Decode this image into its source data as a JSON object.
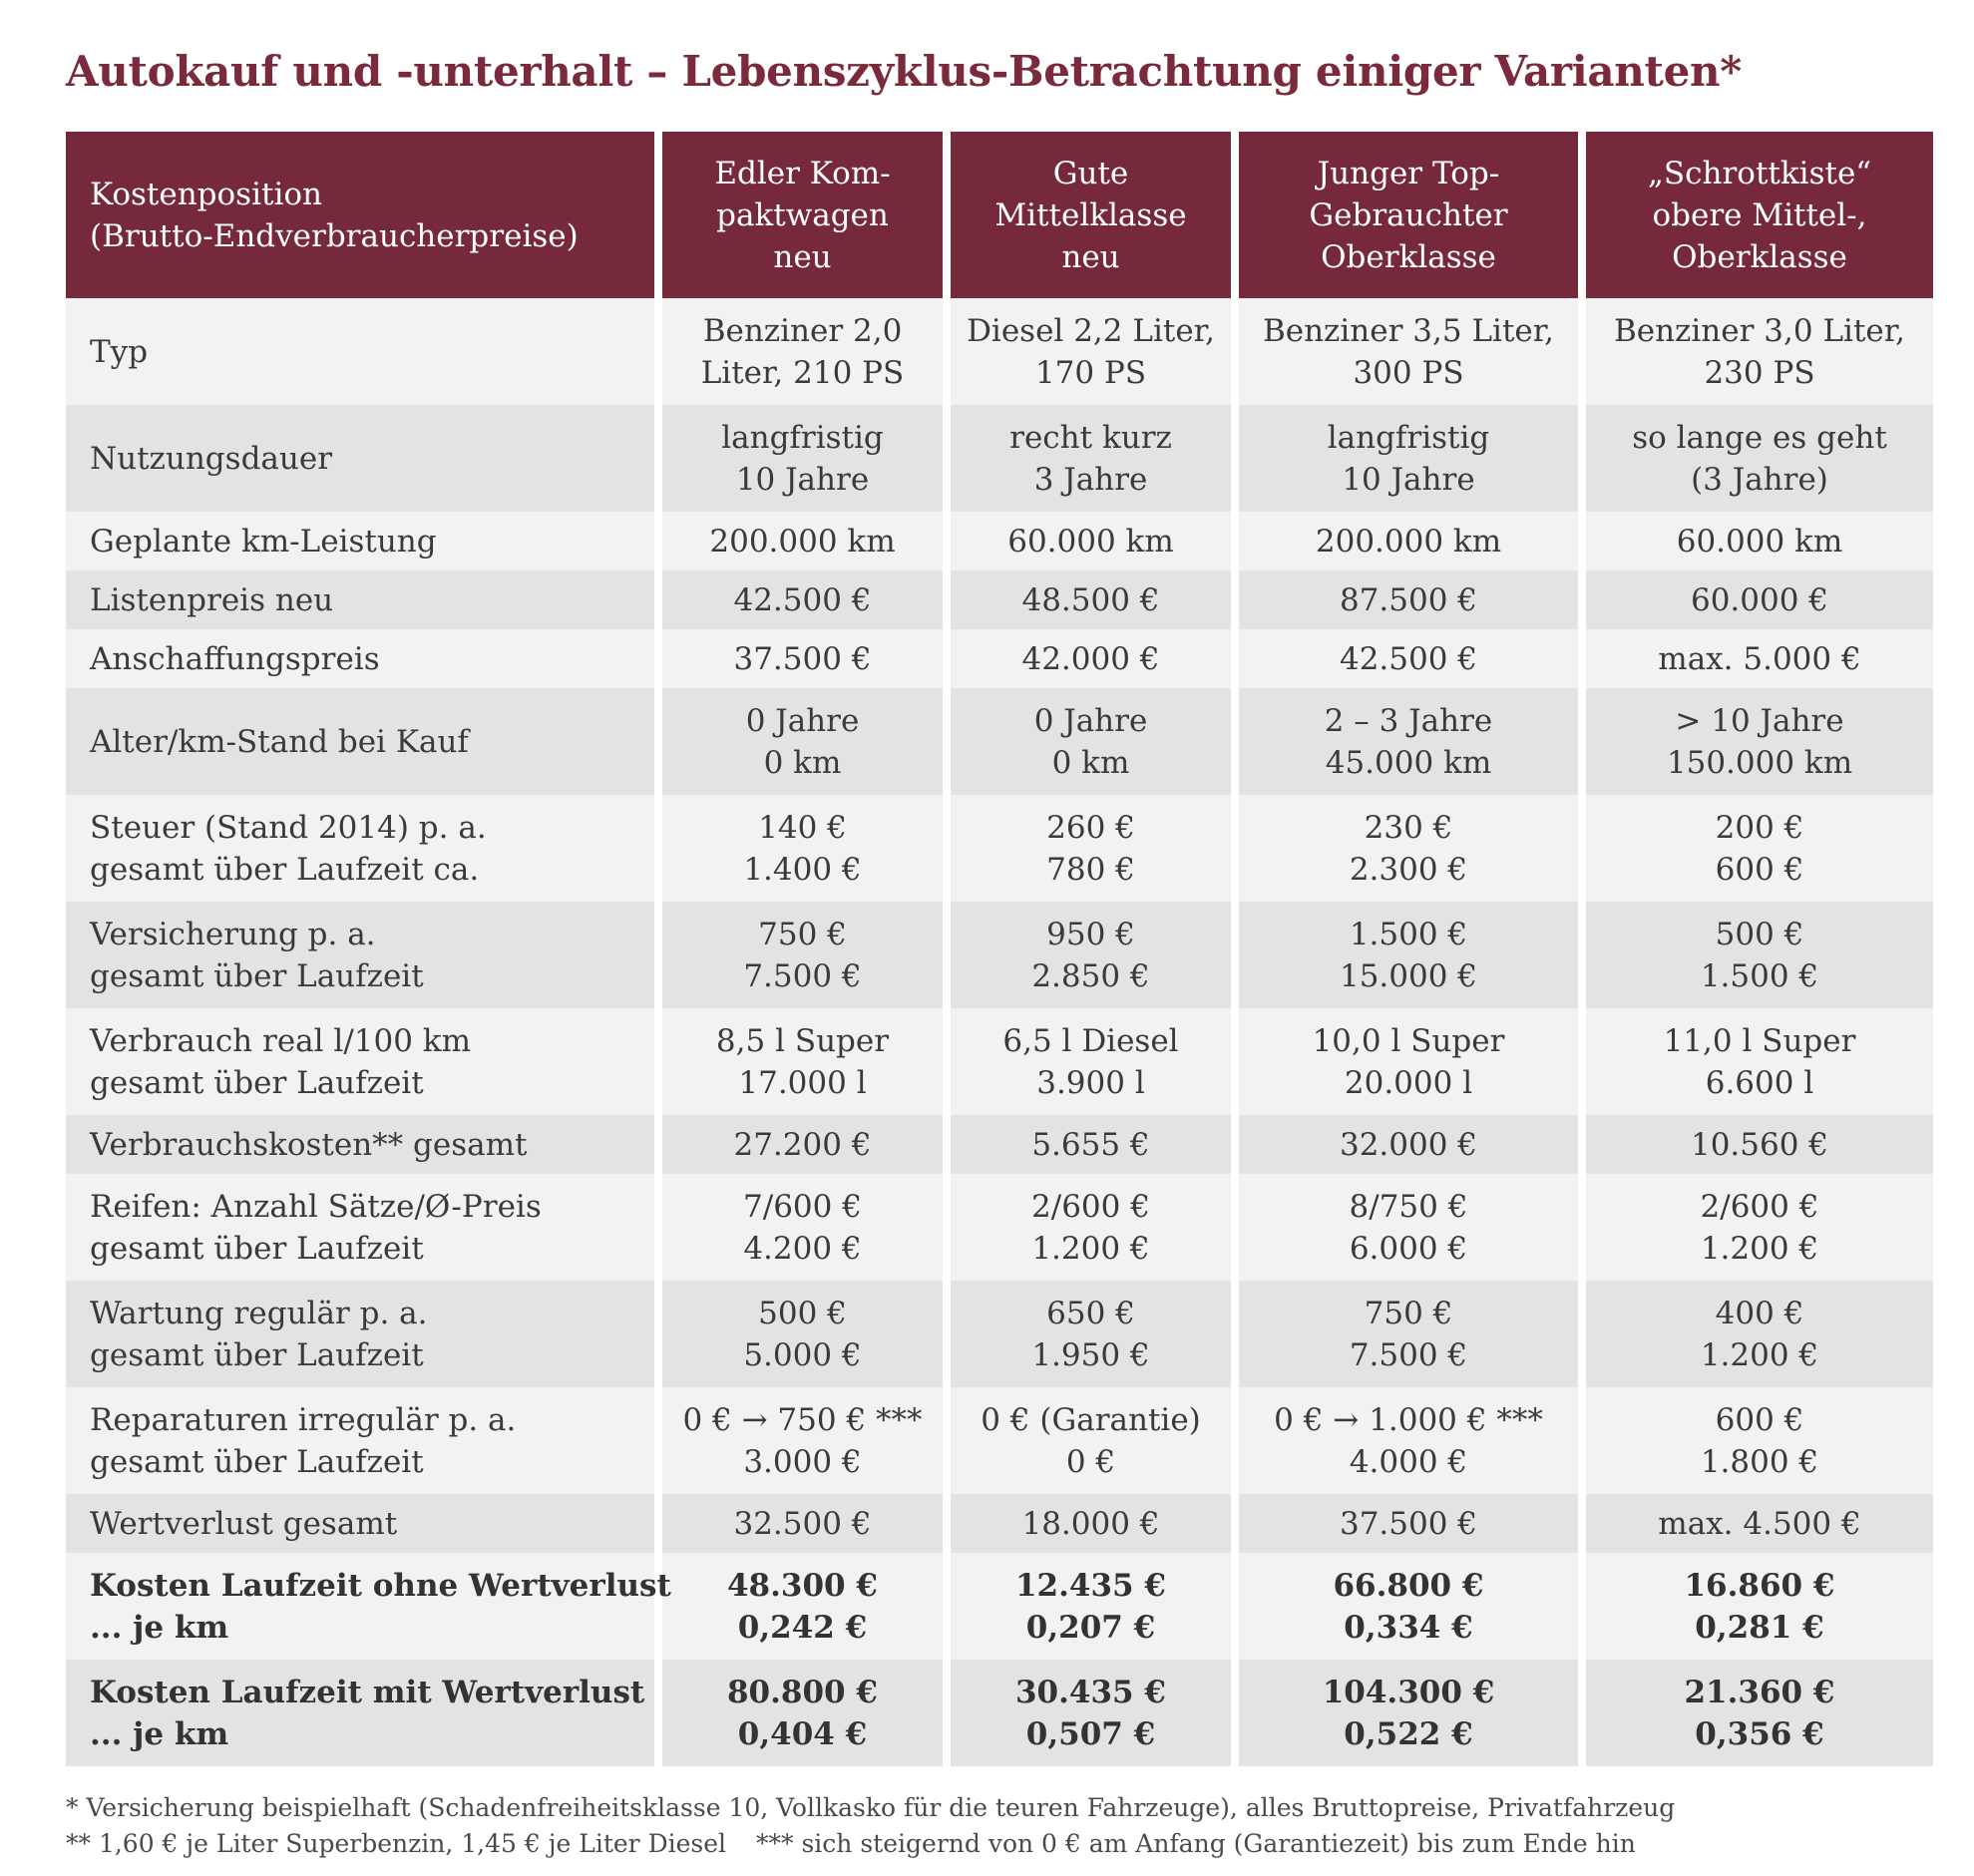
{
  "title": "Autokauf und -unterhalt – Lebenszyklus-Betrachtung einiger Varianten*",
  "table": {
    "header": {
      "label": [
        "Kostenposition",
        "(Brutto-Endverbraucherpreise)"
      ],
      "columns": [
        [
          "Edler Kom-",
          "paktwagen",
          "neu"
        ],
        [
          "Gute",
          "Mittelklasse",
          "neu"
        ],
        [
          "Junger Top-",
          "Gebrauchter",
          "Oberklasse"
        ],
        [
          "„Schrottkiste“",
          "obere Mittel-,",
          "Oberklasse"
        ]
      ]
    },
    "rows": [
      {
        "label": [
          "Typ"
        ],
        "cells": [
          [
            "Benziner 2,0",
            "Liter, 210 PS"
          ],
          [
            "Diesel 2,2 Liter,",
            "170 PS"
          ],
          [
            "Benziner 3,5 Liter,",
            "300 PS"
          ],
          [
            "Benziner 3,0 Liter,",
            "230 PS"
          ]
        ]
      },
      {
        "label": [
          "Nutzungsdauer"
        ],
        "cells": [
          [
            "langfristig",
            "10 Jahre"
          ],
          [
            "recht kurz",
            "3 Jahre"
          ],
          [
            "langfristig",
            "10 Jahre"
          ],
          [
            "so lange es geht",
            "(3 Jahre)"
          ]
        ]
      },
      {
        "label": [
          "Geplante km-Leistung"
        ],
        "cells": [
          [
            "200.000 km"
          ],
          [
            "60.000 km"
          ],
          [
            "200.000 km"
          ],
          [
            "60.000 km"
          ]
        ]
      },
      {
        "label": [
          "Listenpreis neu"
        ],
        "cells": [
          [
            "42.500 €"
          ],
          [
            "48.500 €"
          ],
          [
            "87.500 €"
          ],
          [
            "60.000 €"
          ]
        ]
      },
      {
        "label": [
          "Anschaffungspreis"
        ],
        "cells": [
          [
            "37.500 €"
          ],
          [
            "42.000 €"
          ],
          [
            "42.500 €"
          ],
          [
            "max. 5.000 €"
          ]
        ]
      },
      {
        "label": [
          "Alter/km-Stand bei Kauf"
        ],
        "cells": [
          [
            "0 Jahre",
            "0 km"
          ],
          [
            "0 Jahre",
            "0 km"
          ],
          [
            "2 – 3 Jahre",
            "45.000 km"
          ],
          [
            "> 10 Jahre",
            "150.000 km"
          ]
        ]
      },
      {
        "label": [
          "Steuer (Stand 2014) p. a.",
          "gesamt über Laufzeit ca."
        ],
        "cells": [
          [
            "140 €",
            "1.400 €"
          ],
          [
            "260 €",
            "780 €"
          ],
          [
            "230 €",
            "2.300 €"
          ],
          [
            "200 €",
            "600 €"
          ]
        ]
      },
      {
        "label": [
          "Versicherung p. a.",
          "gesamt über Laufzeit"
        ],
        "cells": [
          [
            "750 €",
            "7.500 €"
          ],
          [
            "950 €",
            "2.850 €"
          ],
          [
            "1.500 €",
            "15.000 €"
          ],
          [
            "500 €",
            "1.500 €"
          ]
        ]
      },
      {
        "label": [
          "Verbrauch real l/100 km",
          "gesamt über Laufzeit"
        ],
        "cells": [
          [
            "8,5 l Super",
            "17.000 l"
          ],
          [
            "6,5 l Diesel",
            "3.900 l"
          ],
          [
            "10,0 l Super",
            "20.000 l"
          ],
          [
            "11,0 l Super",
            "6.600 l"
          ]
        ]
      },
      {
        "label": [
          "Verbrauchskosten** gesamt"
        ],
        "cells": [
          [
            "27.200 €"
          ],
          [
            "5.655 €"
          ],
          [
            "32.000 €"
          ],
          [
            "10.560 €"
          ]
        ]
      },
      {
        "label": [
          "Reifen: Anzahl Sätze/Ø-Preis",
          "gesamt über Laufzeit"
        ],
        "cells": [
          [
            "7/600 €",
            "4.200 €"
          ],
          [
            "2/600 €",
            "1.200 €"
          ],
          [
            "8/750 €",
            "6.000 €"
          ],
          [
            "2/600 €",
            "1.200 €"
          ]
        ]
      },
      {
        "label": [
          "Wartung regulär p. a.",
          "gesamt über Laufzeit"
        ],
        "cells": [
          [
            "500 €",
            "5.000 €"
          ],
          [
            "650 €",
            "1.950 €"
          ],
          [
            "750 €",
            "7.500 €"
          ],
          [
            "400 €",
            "1.200 €"
          ]
        ]
      },
      {
        "label": [
          "Reparaturen irregulär p. a.",
          "gesamt über Laufzeit"
        ],
        "cells": [
          [
            "0 € → 750 € ***",
            "3.000 €"
          ],
          [
            "0 € (Garantie)",
            "0 €"
          ],
          [
            "0 € → 1.000 € ***",
            "4.000 €"
          ],
          [
            "600 €",
            "1.800 €"
          ]
        ]
      },
      {
        "label": [
          "Wertverlust gesamt"
        ],
        "cells": [
          [
            "32.500 €"
          ],
          [
            "18.000 €"
          ],
          [
            "37.500 €"
          ],
          [
            "max. 4.500 €"
          ]
        ]
      },
      {
        "label": [
          "Kosten Laufzeit ohne Wertverlust",
          "... je km"
        ],
        "cells": [
          [
            "48.300 €",
            "0,242 €"
          ],
          [
            "12.435 €",
            "0,207 €"
          ],
          [
            "66.800 €",
            "0,334 €"
          ],
          [
            "16.860 €",
            "0,281 €"
          ]
        ],
        "bold": true
      },
      {
        "label": [
          "Kosten Laufzeit mit Wertverlust",
          "... je km"
        ],
        "cells": [
          [
            "80.800 €",
            "0,404 €"
          ],
          [
            "30.435 €",
            "0,507 €"
          ],
          [
            "104.300 €",
            "0,522 €"
          ],
          [
            "21.360 €",
            "0,356 €"
          ]
        ],
        "bold": true
      }
    ]
  },
  "footnotes": {
    "line1": "* Versicherung beispielhaft (Schadenfreiheitsklasse 10, Vollkasko für die teuren Fahrzeuge), alles Bruttopreise, Privatfahrzeug",
    "line2a": "** 1,60 € je Liter Superbenzin, 1,45 € je Liter Diesel",
    "line2b": "*** sich steigernd von 0 € am Anfang (Garantiezeit) bis zum Ende hin"
  },
  "colors": {
    "accent": "#75293a",
    "title": "#7a2a3a",
    "row_light": "#f2f2f2",
    "row_dark": "#e3e3e3"
  }
}
